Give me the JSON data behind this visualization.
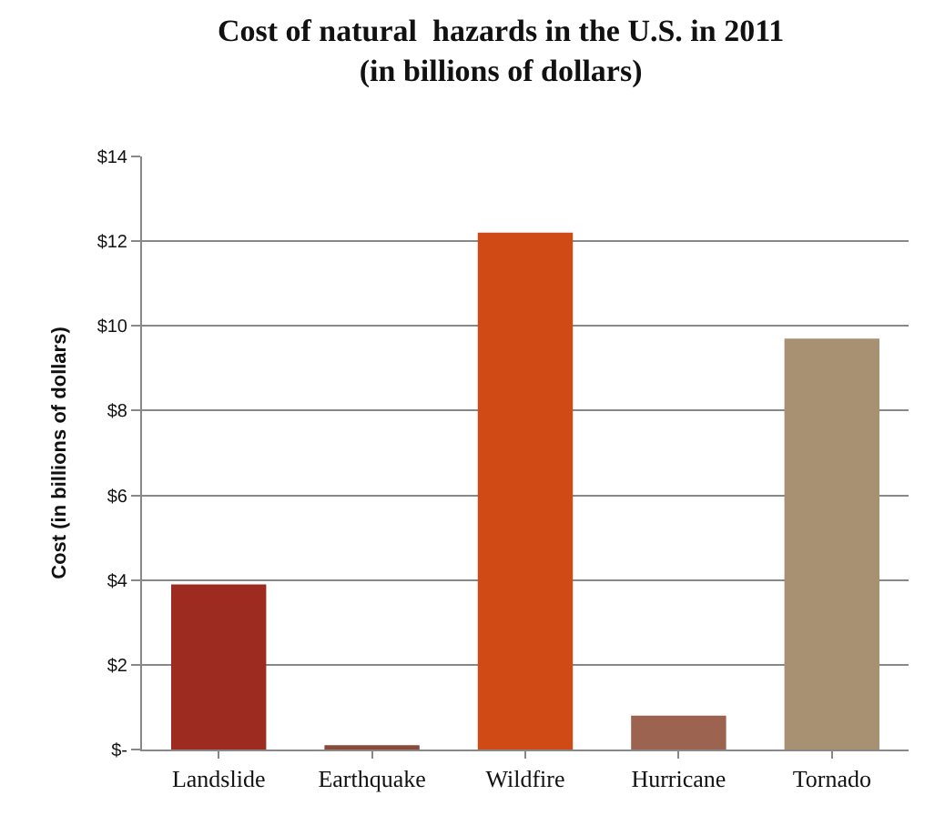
{
  "chart_data": {
    "type": "bar",
    "title": "Cost of natural  hazards in the U.S. in 2011\n(in billions of dollars)",
    "ylabel": "Cost (in billions of dollars)",
    "categories": [
      "Landslide",
      "Earthquake",
      "Wildfire",
      "Hurricane",
      "Tornado"
    ],
    "values": [
      3.9,
      0.1,
      12.2,
      0.8,
      9.7
    ],
    "colors": [
      "#9e2b1f",
      "#8a4a3a",
      "#d04a16",
      "#9c6450",
      "#a89072"
    ],
    "ylim": [
      0,
      14
    ],
    "yticks": [
      {
        "value": 0,
        "label": "$-"
      },
      {
        "value": 2,
        "label": "$2"
      },
      {
        "value": 4,
        "label": "$4"
      },
      {
        "value": 6,
        "label": "$6"
      },
      {
        "value": 8,
        "label": "$8"
      },
      {
        "value": 10,
        "label": "$10"
      },
      {
        "value": 12,
        "label": "$12"
      },
      {
        "value": 14,
        "label": "$14"
      }
    ],
    "grid": "y"
  }
}
